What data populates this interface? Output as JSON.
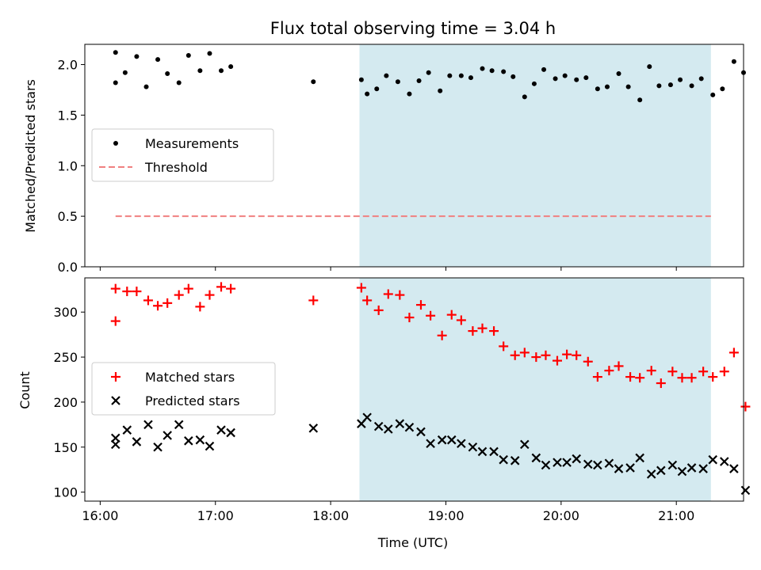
{
  "chart_data": {
    "type": "scatter",
    "title": "Flux total observing time = 3.04 h",
    "xlabel": "Time (UTC)",
    "x_ticks": [
      "16:00",
      "17:00",
      "18:00",
      "19:00",
      "20:00",
      "21:00"
    ],
    "xlim": [
      "15:52",
      "21:35"
    ],
    "shaded_interval": {
      "start": "18:15",
      "end": "21:18",
      "color": "#d4eaf0"
    },
    "top_panel": {
      "ylabel": "Matched/Predicted stars",
      "ylim": [
        0.0,
        2.2
      ],
      "y_ticks": [
        "0.0",
        "0.5",
        "1.0",
        "1.5",
        "2.0"
      ],
      "legend": {
        "placement": "center-left",
        "entries": [
          "Measurements",
          "Threshold"
        ]
      },
      "threshold": {
        "name": "Threshold",
        "value": 0.5,
        "x_start": "16:08",
        "x_end": "21:18",
        "color": "#f08080",
        "style": "dashed"
      },
      "series": [
        {
          "name": "Measurements",
          "marker": "dot",
          "color": "#000000",
          "points": [
            [
              "16:08",
              2.12
            ],
            [
              "16:08",
              1.82
            ],
            [
              "16:13",
              1.92
            ],
            [
              "16:19",
              2.08
            ],
            [
              "16:24",
              1.78
            ],
            [
              "16:30",
              2.05
            ],
            [
              "16:35",
              1.91
            ],
            [
              "16:41",
              1.82
            ],
            [
              "16:46",
              2.09
            ],
            [
              "16:52",
              1.94
            ],
            [
              "16:57",
              2.11
            ],
            [
              "17:03",
              1.94
            ],
            [
              "17:08",
              1.98
            ],
            [
              "17:51",
              1.83
            ],
            [
              "18:16",
              1.85
            ],
            [
              "18:19",
              1.71
            ],
            [
              "18:24",
              1.76
            ],
            [
              "18:29",
              1.89
            ],
            [
              "18:35",
              1.83
            ],
            [
              "18:41",
              1.71
            ],
            [
              "18:46",
              1.84
            ],
            [
              "18:51",
              1.92
            ],
            [
              "18:57",
              1.74
            ],
            [
              "19:02",
              1.89
            ],
            [
              "19:08",
              1.89
            ],
            [
              "19:13",
              1.87
            ],
            [
              "19:19",
              1.96
            ],
            [
              "19:24",
              1.94
            ],
            [
              "19:30",
              1.93
            ],
            [
              "19:35",
              1.88
            ],
            [
              "19:41",
              1.68
            ],
            [
              "19:46",
              1.81
            ],
            [
              "19:51",
              1.95
            ],
            [
              "19:57",
              1.86
            ],
            [
              "20:02",
              1.89
            ],
            [
              "20:08",
              1.85
            ],
            [
              "20:13",
              1.87
            ],
            [
              "20:19",
              1.76
            ],
            [
              "20:24",
              1.78
            ],
            [
              "20:30",
              1.91
            ],
            [
              "20:35",
              1.78
            ],
            [
              "20:41",
              1.65
            ],
            [
              "20:46",
              1.98
            ],
            [
              "20:51",
              1.79
            ],
            [
              "20:57",
              1.8
            ],
            [
              "21:02",
              1.85
            ],
            [
              "21:08",
              1.79
            ],
            [
              "21:13",
              1.86
            ],
            [
              "21:19",
              1.7
            ],
            [
              "21:24",
              1.76
            ],
            [
              "21:30",
              2.03
            ],
            [
              "21:35",
              1.92
            ]
          ]
        }
      ]
    },
    "bottom_panel": {
      "ylabel": "Count",
      "ylim": [
        90,
        338
      ],
      "y_ticks": [
        "100",
        "150",
        "200",
        "250",
        "300"
      ],
      "legend": {
        "placement": "center-left",
        "entries": [
          "Matched stars",
          "Predicted stars"
        ]
      },
      "series": [
        {
          "name": "Matched stars",
          "marker": "plus",
          "color": "#ff0000",
          "points": [
            [
              "16:08",
              326
            ],
            [
              "16:08",
              290
            ],
            [
              "16:14",
              323
            ],
            [
              "16:19",
              323
            ],
            [
              "16:25",
              313
            ],
            [
              "16:30",
              307
            ],
            [
              "16:35",
              310
            ],
            [
              "16:41",
              319
            ],
            [
              "16:46",
              326
            ],
            [
              "16:52",
              306
            ],
            [
              "16:57",
              319
            ],
            [
              "17:03",
              328
            ],
            [
              "17:08",
              326
            ],
            [
              "17:51",
              313
            ],
            [
              "18:16",
              327
            ],
            [
              "18:19",
              313
            ],
            [
              "18:25",
              302
            ],
            [
              "18:30",
              320
            ],
            [
              "18:36",
              319
            ],
            [
              "18:41",
              294
            ],
            [
              "18:47",
              308
            ],
            [
              "18:52",
              296
            ],
            [
              "18:58",
              274
            ],
            [
              "19:03",
              297
            ],
            [
              "19:08",
              291
            ],
            [
              "19:14",
              279
            ],
            [
              "19:19",
              282
            ],
            [
              "19:25",
              279
            ],
            [
              "19:30",
              262
            ],
            [
              "19:36",
              252
            ],
            [
              "19:41",
              255
            ],
            [
              "19:47",
              250
            ],
            [
              "19:52",
              252
            ],
            [
              "19:58",
              246
            ],
            [
              "20:03",
              253
            ],
            [
              "20:08",
              252
            ],
            [
              "20:14",
              245
            ],
            [
              "20:19",
              228
            ],
            [
              "20:25",
              235
            ],
            [
              "20:30",
              240
            ],
            [
              "20:36",
              228
            ],
            [
              "20:41",
              227
            ],
            [
              "20:47",
              235
            ],
            [
              "20:52",
              221
            ],
            [
              "20:58",
              234
            ],
            [
              "21:03",
              227
            ],
            [
              "21:08",
              227
            ],
            [
              "21:14",
              234
            ],
            [
              "21:19",
              228
            ],
            [
              "21:25",
              234
            ],
            [
              "21:30",
              255
            ],
            [
              "21:36",
              195
            ]
          ]
        },
        {
          "name": "Predicted stars",
          "marker": "x",
          "color": "#000000",
          "points": [
            [
              "16:08",
              160
            ],
            [
              "16:08",
              153
            ],
            [
              "16:14",
              169
            ],
            [
              "16:19",
              156
            ],
            [
              "16:25",
              175
            ],
            [
              "16:30",
              150
            ],
            [
              "16:35",
              163
            ],
            [
              "16:41",
              175
            ],
            [
              "16:46",
              157
            ],
            [
              "16:52",
              158
            ],
            [
              "16:57",
              151
            ],
            [
              "17:03",
              169
            ],
            [
              "17:08",
              166
            ],
            [
              "17:51",
              171
            ],
            [
              "18:16",
              176
            ],
            [
              "18:19",
              183
            ],
            [
              "18:25",
              173
            ],
            [
              "18:30",
              170
            ],
            [
              "18:36",
              176
            ],
            [
              "18:41",
              172
            ],
            [
              "18:47",
              167
            ],
            [
              "18:52",
              154
            ],
            [
              "18:58",
              158
            ],
            [
              "19:03",
              158
            ],
            [
              "19:08",
              154
            ],
            [
              "19:14",
              150
            ],
            [
              "19:19",
              145
            ],
            [
              "19:25",
              145
            ],
            [
              "19:30",
              136
            ],
            [
              "19:36",
              135
            ],
            [
              "19:41",
              153
            ],
            [
              "19:47",
              138
            ],
            [
              "19:52",
              130
            ],
            [
              "19:58",
              133
            ],
            [
              "20:03",
              133
            ],
            [
              "20:08",
              137
            ],
            [
              "20:14",
              131
            ],
            [
              "20:19",
              130
            ],
            [
              "20:25",
              132
            ],
            [
              "20:30",
              126
            ],
            [
              "20:36",
              127
            ],
            [
              "20:41",
              138
            ],
            [
              "20:47",
              120
            ],
            [
              "20:52",
              124
            ],
            [
              "20:58",
              130
            ],
            [
              "21:03",
              123
            ],
            [
              "21:08",
              127
            ],
            [
              "21:14",
              126
            ],
            [
              "21:19",
              136
            ],
            [
              "21:25",
              134
            ],
            [
              "21:30",
              126
            ],
            [
              "21:36",
              102
            ]
          ]
        }
      ]
    }
  }
}
